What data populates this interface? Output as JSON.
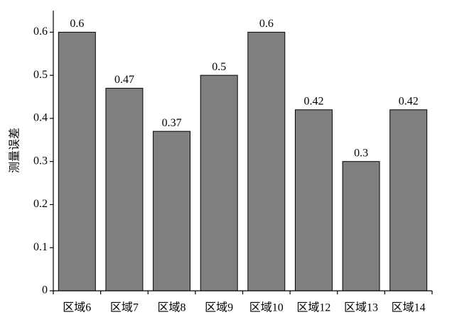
{
  "chart_data": {
    "type": "bar",
    "y_label": "测量误差",
    "categories": [
      "区域6",
      "区域7",
      "区域8",
      "区域9",
      "区域10",
      "区域12",
      "区域13",
      "区域14"
    ],
    "values": [
      0.6,
      0.47,
      0.37,
      0.5,
      0.6,
      0.42,
      0.3,
      0.42
    ],
    "color": "#808080",
    "ylim": [
      0,
      0.65
    ],
    "yticks": [
      0,
      0.1,
      0.2,
      0.3,
      0.4,
      0.5,
      0.6
    ],
    "grid": false
  }
}
